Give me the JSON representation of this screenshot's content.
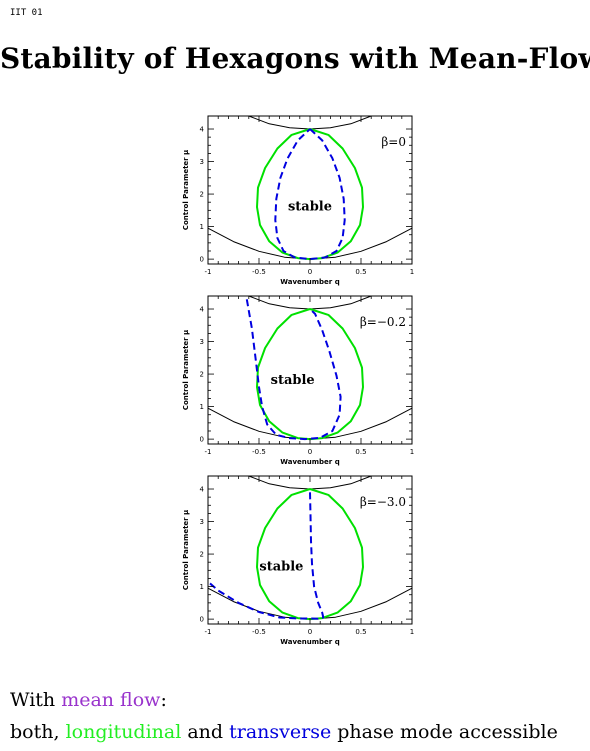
{
  "slide": {
    "label": "IIT 01",
    "title": "Stability of Hexagons with Mean-Flow"
  },
  "colors": {
    "longitudinal": "#00e000",
    "transverse": "#0000e0",
    "mean_flow": "#9933cc",
    "existence": "#000000"
  },
  "chart_data": [
    {
      "type": "line",
      "annotation": "β=0",
      "region_label": "stable",
      "xlabel": "Wavenumber q",
      "ylabel": "Control Parameter μ",
      "xlim": [
        -1,
        1
      ],
      "ylim": [
        -0.15,
        4.4
      ],
      "xticks": [
        "-1",
        "-0.5",
        "0",
        "0.5",
        "1"
      ],
      "yticks": [
        "0",
        "1",
        "2",
        "3",
        "4"
      ],
      "series": [
        {
          "style": "lower-existence",
          "x": [
            -1,
            -0.75,
            -0.5,
            -0.25,
            0,
            0.25,
            0.5,
            0.75,
            1
          ],
          "y": [
            0.95,
            0.54,
            0.24,
            0.06,
            0,
            0.06,
            0.24,
            0.54,
            0.95
          ]
        },
        {
          "style": "upper-existence",
          "x": [
            -0.6,
            -0.4,
            -0.2,
            0,
            0.2,
            0.4,
            0.6
          ],
          "y": [
            4.4,
            4.16,
            4.04,
            4.0,
            4.04,
            4.16,
            4.4
          ]
        },
        {
          "style": "longitudinal",
          "x": [
            0,
            0.18,
            0.32,
            0.44,
            0.51,
            0.52,
            0.49,
            0.4,
            0.27,
            0.12,
            0,
            -0.12,
            -0.27,
            -0.4,
            -0.49,
            -0.52,
            -0.51,
            -0.44,
            -0.32,
            -0.18,
            0
          ],
          "y": [
            4.0,
            3.82,
            3.4,
            2.8,
            2.2,
            1.6,
            1.05,
            0.55,
            0.2,
            0.03,
            0,
            0.03,
            0.2,
            0.55,
            1.05,
            1.6,
            2.2,
            2.8,
            3.4,
            3.82,
            4.0
          ]
        },
        {
          "style": "transverse",
          "x": [
            0,
            0.12,
            0.22,
            0.29,
            0.33,
            0.34,
            0.32,
            0.26,
            0.15,
            0,
            -0.15,
            -0.26,
            -0.32,
            -0.34,
            -0.33,
            -0.29,
            -0.22,
            -0.12,
            0
          ],
          "y": [
            4.0,
            3.65,
            3.1,
            2.5,
            1.85,
            1.2,
            0.65,
            0.25,
            0.05,
            0,
            0.05,
            0.25,
            0.65,
            1.2,
            1.85,
            2.5,
            3.1,
            3.65,
            4.0
          ]
        }
      ]
    },
    {
      "type": "line",
      "annotation": "β=−0.2",
      "region_label": "stable",
      "xlabel": "Wavenumber q",
      "ylabel": "Control Parameter μ",
      "xlim": [
        -1,
        1
      ],
      "ylim": [
        -0.15,
        4.4
      ],
      "xticks": [
        "-1",
        "-0.5",
        "0",
        "0.5",
        "1"
      ],
      "yticks": [
        "0",
        "1",
        "2",
        "3",
        "4"
      ],
      "series": [
        {
          "style": "lower-existence",
          "x": [
            -1,
            -0.75,
            -0.5,
            -0.25,
            0,
            0.25,
            0.5,
            0.75,
            1
          ],
          "y": [
            0.95,
            0.54,
            0.24,
            0.06,
            0,
            0.06,
            0.24,
            0.54,
            0.95
          ]
        },
        {
          "style": "upper-existence",
          "x": [
            -0.6,
            -0.4,
            -0.2,
            0,
            0.2,
            0.4,
            0.6
          ],
          "y": [
            4.4,
            4.16,
            4.04,
            4.0,
            4.04,
            4.16,
            4.4
          ]
        },
        {
          "style": "longitudinal",
          "x": [
            0,
            0.18,
            0.32,
            0.44,
            0.51,
            0.52,
            0.49,
            0.4,
            0.27,
            0.12,
            0,
            -0.12,
            -0.27,
            -0.4,
            -0.49,
            -0.52,
            -0.51,
            -0.44,
            -0.32,
            -0.18,
            0
          ],
          "y": [
            4.0,
            3.82,
            3.4,
            2.8,
            2.2,
            1.6,
            1.05,
            0.55,
            0.2,
            0.03,
            0,
            0.03,
            0.2,
            0.55,
            1.05,
            1.6,
            2.2,
            2.8,
            3.4,
            3.82,
            4.0
          ]
        },
        {
          "style": "transverse",
          "x": [
            -0.62,
            -0.57,
            -0.53,
            -0.5,
            -0.47,
            -0.42,
            -0.33,
            -0.2,
            -0.05,
            0.1,
            0.22,
            0.29,
            0.3,
            0.26,
            0.19,
            0.12,
            0.05,
            0
          ],
          "y": [
            4.3,
            3.4,
            2.4,
            1.6,
            1.0,
            0.45,
            0.13,
            0.03,
            0,
            0.04,
            0.25,
            0.75,
            1.3,
            1.95,
            2.7,
            3.35,
            3.85,
            4.0
          ]
        }
      ]
    },
    {
      "type": "line",
      "annotation": "β=−3.0",
      "region_label": "stable",
      "xlabel": "Wavenumber q",
      "ylabel": "Control Parameter μ",
      "xlim": [
        -1,
        1
      ],
      "ylim": [
        -0.15,
        4.4
      ],
      "xticks": [
        "-1",
        "-0.5",
        "0",
        "0.5",
        "1"
      ],
      "yticks": [
        "0",
        "1",
        "2",
        "3",
        "4"
      ],
      "series": [
        {
          "style": "lower-existence",
          "x": [
            -1,
            -0.75,
            -0.5,
            -0.25,
            0,
            0.25,
            0.5,
            0.75,
            1
          ],
          "y": [
            0.95,
            0.54,
            0.24,
            0.06,
            0,
            0.06,
            0.24,
            0.54,
            0.95
          ]
        },
        {
          "style": "upper-existence",
          "x": [
            -0.6,
            -0.4,
            -0.2,
            0,
            0.2,
            0.4,
            0.6
          ],
          "y": [
            4.4,
            4.16,
            4.04,
            4.0,
            4.04,
            4.16,
            4.4
          ]
        },
        {
          "style": "longitudinal",
          "x": [
            0,
            0.18,
            0.32,
            0.44,
            0.51,
            0.52,
            0.49,
            0.4,
            0.27,
            0.12,
            0,
            -0.12,
            -0.27,
            -0.4,
            -0.49,
            -0.52,
            -0.51,
            -0.44,
            -0.32,
            -0.18,
            0
          ],
          "y": [
            4.0,
            3.82,
            3.4,
            2.8,
            2.2,
            1.6,
            1.05,
            0.55,
            0.2,
            0.03,
            0,
            0.03,
            0.2,
            0.55,
            1.05,
            1.6,
            2.2,
            2.8,
            3.4,
            3.82,
            4.0
          ]
        },
        {
          "style": "transverse",
          "x": [
            0,
            0.005,
            0.01,
            0.02,
            0.04,
            0.08,
            0.12,
            0.13,
            0.08,
            0,
            -0.1,
            -0.3,
            -0.5,
            -0.7,
            -0.9,
            -1.0
          ],
          "y": [
            3.9,
            3.2,
            2.4,
            1.7,
            1.0,
            0.5,
            0.2,
            0.05,
            0.01,
            0.02,
            0.02,
            0.05,
            0.22,
            0.5,
            0.88,
            1.15
          ]
        }
      ]
    }
  ],
  "caption": {
    "line1": {
      "prefix": "With ",
      "highlight": "mean flow",
      "suffix": ":"
    },
    "line2": {
      "prefix": "both, ",
      "green": "longitudinal",
      "middle": " and ",
      "blue": "transverse",
      "suffix": " phase mode accessible"
    }
  }
}
